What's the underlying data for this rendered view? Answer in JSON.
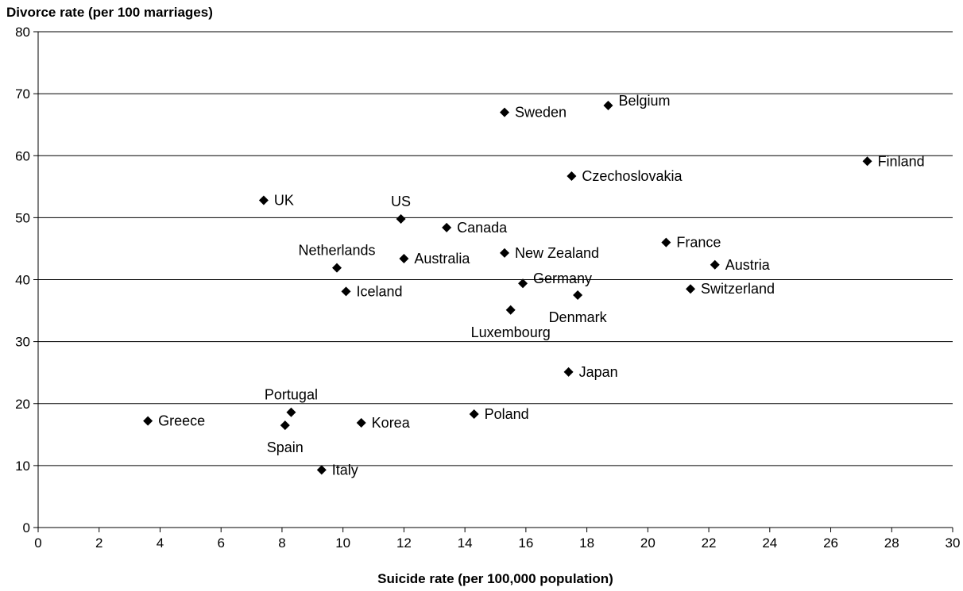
{
  "chart_data": {
    "type": "scatter",
    "title": "",
    "xlabel": "Suicide rate (per 100,000 population)",
    "ylabel": "Divorce rate (per 100 marriages)",
    "xlim": [
      0,
      30
    ],
    "ylim": [
      0,
      80
    ],
    "x_ticks": [
      0,
      2,
      4,
      6,
      8,
      10,
      12,
      14,
      16,
      18,
      20,
      22,
      24,
      26,
      28,
      30
    ],
    "y_ticks": [
      0,
      10,
      20,
      30,
      40,
      50,
      60,
      70,
      80
    ],
    "grid": "horizontal",
    "marker": "diamond",
    "points": [
      {
        "label": "Sweden",
        "x": 15.3,
        "y": 67.0,
        "label_pos": "right"
      },
      {
        "label": "Belgium",
        "x": 18.7,
        "y": 68.1,
        "label_pos": "right-up"
      },
      {
        "label": "Finland",
        "x": 27.2,
        "y": 59.1,
        "label_pos": "right"
      },
      {
        "label": "Czechoslovakia",
        "x": 17.5,
        "y": 56.7,
        "label_pos": "right"
      },
      {
        "label": "UK",
        "x": 7.4,
        "y": 52.8,
        "label_pos": "right"
      },
      {
        "label": "US",
        "x": 11.9,
        "y": 49.8,
        "label_pos": "above"
      },
      {
        "label": "Canada",
        "x": 13.4,
        "y": 48.4,
        "label_pos": "right"
      },
      {
        "label": "France",
        "x": 20.6,
        "y": 46.0,
        "label_pos": "right"
      },
      {
        "label": "New Zealand",
        "x": 15.3,
        "y": 44.3,
        "label_pos": "right"
      },
      {
        "label": "Australia",
        "x": 12.0,
        "y": 43.4,
        "label_pos": "right"
      },
      {
        "label": "Austria",
        "x": 22.2,
        "y": 42.4,
        "label_pos": "right"
      },
      {
        "label": "Netherlands",
        "x": 9.8,
        "y": 41.9,
        "label_pos": "above"
      },
      {
        "label": "Germany",
        "x": 15.9,
        "y": 39.4,
        "label_pos": "right-up"
      },
      {
        "label": "Switzerland",
        "x": 21.4,
        "y": 38.5,
        "label_pos": "right"
      },
      {
        "label": "Iceland",
        "x": 10.1,
        "y": 38.1,
        "label_pos": "right"
      },
      {
        "label": "Denmark",
        "x": 17.7,
        "y": 37.5,
        "label_pos": "below"
      },
      {
        "label": "Luxembourg",
        "x": 15.5,
        "y": 35.1,
        "label_pos": "below"
      },
      {
        "label": "Japan",
        "x": 17.4,
        "y": 25.1,
        "label_pos": "right"
      },
      {
        "label": "Portugal",
        "x": 8.3,
        "y": 18.6,
        "label_pos": "above"
      },
      {
        "label": "Poland",
        "x": 14.3,
        "y": 18.3,
        "label_pos": "right"
      },
      {
        "label": "Greece",
        "x": 3.6,
        "y": 17.2,
        "label_pos": "right"
      },
      {
        "label": "Korea",
        "x": 10.6,
        "y": 16.9,
        "label_pos": "right"
      },
      {
        "label": "Spain",
        "x": 8.1,
        "y": 16.5,
        "label_pos": "below"
      },
      {
        "label": "Italy",
        "x": 9.3,
        "y": 9.3,
        "label_pos": "right"
      }
    ],
    "colors": {
      "marker": "#000000",
      "grid": "#000000",
      "axis": "#000000",
      "background": "#ffffff"
    }
  }
}
